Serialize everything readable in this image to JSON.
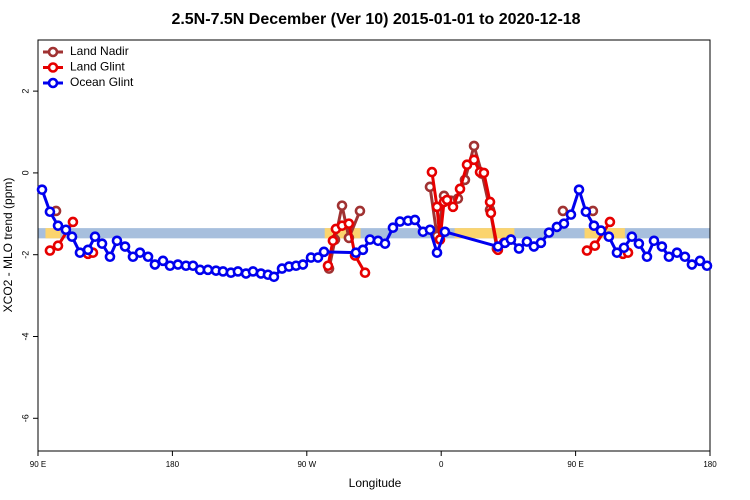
{
  "chart_data": {
    "type": "line",
    "title": "2.5N-7.5N December (Ver 10)   2015-01-01 to 2020-12-18",
    "x_label": "Longitude",
    "y_label": "XCO2 - MLO trend (ppm)",
    "xlim": [
      90,
      540
    ],
    "xticks": [
      {
        "value": 90,
        "label": "90 E"
      },
      {
        "value": 180,
        "label": "180"
      },
      {
        "value": 270,
        "label": "90 W"
      },
      {
        "value": 360,
        "label": "0"
      },
      {
        "value": 450,
        "label": "90 E"
      },
      {
        "value": 540,
        "label": "180"
      }
    ],
    "ylim": [
      -6.8,
      3.25
    ],
    "yticks": [
      -6,
      -4,
      -2,
      0,
      2
    ],
    "legend": "top-left",
    "band": {
      "range": [
        -1.6,
        -1.35
      ],
      "color": "#a7bfdd",
      "highlight_color": "#fbd46e",
      "highlights": [
        [
          95,
          105
        ],
        [
          282,
          306
        ],
        [
          369,
          409
        ],
        [
          456,
          483
        ]
      ]
    },
    "series": [
      {
        "name": "Land Nadir",
        "color": "#a03232",
        "x": [
          102.1,
          null,
          284.9,
          288.9,
          293.6,
          298.2,
          305.6,
          null,
          352.5,
          357.2,
          361.9,
          366.5,
          371.2,
          375.9,
          382.0,
          387.3,
          392.7,
          397.3,
          406.7,
          null,
          441.5,
          null,
          461.6
        ],
        "values": [
          -0.93,
          null,
          -2.34,
          -1.63,
          -0.8,
          -1.59,
          -0.93,
          null,
          -0.34,
          -1.54,
          -0.56,
          -0.68,
          -0.63,
          -0.17,
          0.66,
          -0.02,
          -0.9,
          -1.85,
          -1.63,
          null,
          -0.93,
          null,
          -0.93
        ]
      },
      {
        "name": "Land Glint",
        "color": "#e60000",
        "x": [
          98.0,
          103.4,
          113.4,
          null,
          123.5,
          126.8,
          null,
          284.2,
          287.5,
          289.5,
          293.6,
          298.2,
          302.3,
          309.0,
          null,
          353.8,
          357.2,
          359.2,
          361.9,
          363.9,
          367.9,
          372.6,
          377.3,
          382.0,
          386.0,
          388.6,
          392.7,
          393.3,
          398.0,
          402.0,
          null,
          457.6,
          462.9,
          473.0,
          null,
          481.7,
          485.1
        ],
        "values": [
          -1.9,
          -1.78,
          -1.2,
          null,
          -1.98,
          -1.95,
          null,
          -2.27,
          -1.66,
          -1.37,
          -1.29,
          -1.24,
          -2.02,
          -2.44,
          null,
          0.02,
          -0.83,
          -1.63,
          -0.71,
          -0.66,
          -0.83,
          -0.39,
          0.2,
          0.32,
          0.02,
          0.0,
          -0.71,
          -0.98,
          -1.88,
          -1.71,
          null,
          -1.9,
          -1.78,
          -1.2,
          null,
          -1.98,
          -1.95
        ]
      },
      {
        "name": "Ocean Glint",
        "color": "#0000ee",
        "x": [
          92.7,
          98.0,
          103.4,
          108.7,
          112.8,
          118.1,
          123.5,
          128.2,
          132.9,
          138.2,
          142.9,
          148.3,
          153.6,
          158.3,
          163.7,
          168.3,
          173.7,
          178.4,
          183.7,
          189.1,
          193.8,
          198.5,
          203.8,
          209.2,
          213.9,
          219.2,
          223.9,
          229.3,
          234.0,
          239.3,
          244.0,
          248.0,
          253.4,
          258.1,
          262.8,
          267.4,
          272.8,
          277.5,
          281.5,
          302.9,
          307.6,
          312.3,
          317.7,
          322.4,
          327.7,
          332.4,
          337.8,
          342.4,
          347.8,
          352.5,
          357.2,
          362.5,
          398.0,
          402.7,
          406.7,
          412.1,
          417.4,
          422.1,
          426.8,
          432.2,
          437.5,
          442.2,
          446.9,
          452.3,
          456.9,
          462.3,
          467.0,
          472.3,
          477.7,
          482.4,
          487.7,
          492.4,
          497.8,
          502.5,
          507.8,
          512.5,
          517.9,
          523.2,
          527.9,
          533.3,
          538.0
        ],
        "values": [
          -0.41,
          -0.95,
          -1.29,
          -1.39,
          -1.56,
          -1.95,
          -1.88,
          -1.56,
          -1.73,
          -2.05,
          -1.66,
          -1.8,
          -2.05,
          -1.95,
          -2.05,
          -2.24,
          -2.15,
          -2.27,
          -2.24,
          -2.27,
          -2.27,
          -2.37,
          -2.37,
          -2.39,
          -2.41,
          -2.44,
          -2.41,
          -2.46,
          -2.41,
          -2.46,
          -2.49,
          -2.54,
          -2.34,
          -2.29,
          -2.27,
          -2.24,
          -2.07,
          -2.07,
          -1.93,
          -1.95,
          -1.88,
          -1.63,
          -1.66,
          -1.73,
          -1.34,
          -1.19,
          -1.17,
          -1.15,
          -1.44,
          -1.39,
          -1.95,
          -1.44,
          -1.8,
          -1.71,
          -1.63,
          -1.85,
          -1.68,
          -1.8,
          -1.71,
          -1.46,
          -1.32,
          -1.24,
          -1.02,
          -0.41,
          -0.95,
          -1.29,
          -1.41,
          -1.56,
          -1.95,
          -1.83,
          -1.56,
          -1.73,
          -2.05,
          -1.66,
          -1.8,
          -2.05,
          -1.95,
          -2.05,
          -2.24,
          -2.15,
          -2.27
        ]
      }
    ]
  }
}
